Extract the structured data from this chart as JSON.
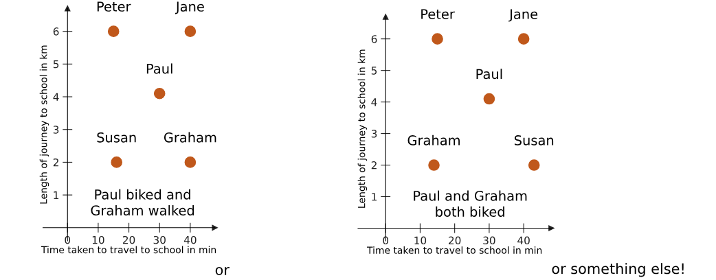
{
  "chart_data": [
    {
      "type": "scatter",
      "xlabel": "Time taken to travel to school in min",
      "ylabel": "Length of journey to school in km",
      "x": [
        15,
        40,
        30,
        16,
        40
      ],
      "values": [
        6,
        6,
        4.1,
        2,
        2
      ],
      "color": "#c0581b",
      "marker": "circle",
      "xlim": [
        -8,
        48
      ],
      "ylim": [
        -0.4,
        6.7
      ],
      "xticks": [
        {
          "value": 0,
          "label": "0"
        },
        10,
        20,
        30,
        40
      ],
      "yticks": [
        1,
        2,
        3,
        4,
        5,
        6
      ],
      "grid": false,
      "annotations": [
        {
          "text": "Peter",
          "x": 15,
          "y": 6
        },
        {
          "text": "Jane",
          "x": 40,
          "y": 6
        },
        {
          "text": "Paul",
          "x": 30,
          "y": 4.1
        },
        {
          "text": "Susan",
          "x": 16,
          "y": 2
        },
        {
          "text": "Graham",
          "x": 40,
          "y": 2
        },
        "Paul biked and\nGraham walked",
        "or"
      ]
    },
    {
      "type": "scatter",
      "xlabel": "Time taken to travel to school in min",
      "ylabel": "Length of journey to school in km",
      "x": [
        15,
        40,
        30,
        14,
        43
      ],
      "values": [
        6,
        6,
        4.1,
        2,
        2
      ],
      "color": "#c0581b",
      "marker": "circle",
      "xlim": [
        -8,
        48
      ],
      "ylim": [
        -0.4,
        6.7
      ],
      "xticks": [
        {
          "value": 0,
          "label": "0"
        },
        10,
        20,
        30,
        40
      ],
      "yticks": [
        1,
        2,
        3,
        4,
        5,
        6
      ],
      "grid": false,
      "annotations": [
        {
          "text": "Peter",
          "x": 15,
          "y": 6
        },
        {
          "text": "Jane",
          "x": 40,
          "y": 6
        },
        {
          "text": "Paul",
          "x": 30,
          "y": 4.1
        },
        {
          "text": "Graham",
          "x": 14,
          "y": 2
        },
        {
          "text": "Susan",
          "x": 43,
          "y": 2
        },
        "Paul and Graham\nboth biked",
        "or something else!"
      ]
    }
  ]
}
